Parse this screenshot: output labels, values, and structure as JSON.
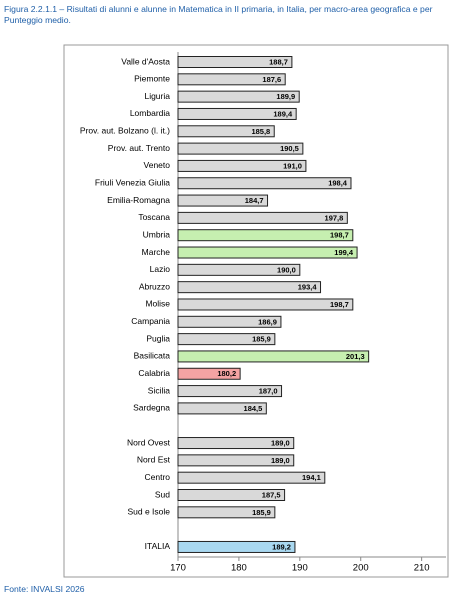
{
  "chart_data": {
    "type": "hbar",
    "title": "Figura 2.2.1.1 – Risultati di alunni e alunne in Matematica in II primaria, in Italia, per macro-area geografica e per Punteggio medio.",
    "source": "Fonte: INVALSI 2026",
    "categories": [
      "Valle d'Aosta",
      "Piemonte",
      "Liguria",
      "Lombardia",
      "Prov. aut. Bolzano (l. it.)",
      "Prov. aut. Trento",
      "Veneto",
      "Friuli Venezia Giulia",
      "Emilia-Romagna",
      "Toscana",
      "Umbria",
      "Marche",
      "Lazio",
      "Abruzzo",
      "Molise",
      "Campania",
      "Puglia",
      "Basilicata",
      "Calabria",
      "Sicilia",
      "Sardegna",
      null,
      "Nord Ovest",
      "Nord Est",
      "Centro",
      "Sud",
      "Sud e Isole",
      null,
      "ITALIA"
    ],
    "values": [
      188.7,
      187.6,
      189.9,
      189.4,
      185.8,
      190.5,
      191.0,
      198.4,
      184.7,
      197.8,
      198.7,
      199.4,
      190.0,
      193.4,
      198.7,
      186.9,
      185.9,
      201.3,
      180.2,
      187.0,
      184.5,
      null,
      189.0,
      189.0,
      194.1,
      187.5,
      185.9,
      null,
      189.2
    ],
    "value_labels": [
      "188,7",
      "187,6",
      "189,9",
      "189,4",
      "185,8",
      "190,5",
      "191,0",
      "198,4",
      "184,7",
      "197,8",
      "198,7",
      "199,4",
      "190,0",
      "193,4",
      "198,7",
      "186,9",
      "185,9",
      "201,3",
      "180,2",
      "187,0",
      "184,5",
      null,
      "189,0",
      "189,0",
      "194,1",
      "187,5",
      "185,9",
      null,
      "189,2"
    ],
    "colors": [
      "#d9d9d9",
      "#d9d9d9",
      "#d9d9d9",
      "#d9d9d9",
      "#d9d9d9",
      "#d9d9d9",
      "#d9d9d9",
      "#d9d9d9",
      "#d9d9d9",
      "#d9d9d9",
      "#c6efb0",
      "#c6efb0",
      "#d9d9d9",
      "#d9d9d9",
      "#d9d9d9",
      "#d9d9d9",
      "#d9d9d9",
      "#c6efb0",
      "#f4a3a3",
      "#d9d9d9",
      "#d9d9d9",
      null,
      "#d9d9d9",
      "#d9d9d9",
      "#d9d9d9",
      "#d9d9d9",
      "#d9d9d9",
      null,
      "#a9d8f0"
    ],
    "xlim": [
      170,
      214
    ],
    "xticks": [
      170,
      180,
      190,
      200,
      210
    ],
    "grid": false
  }
}
